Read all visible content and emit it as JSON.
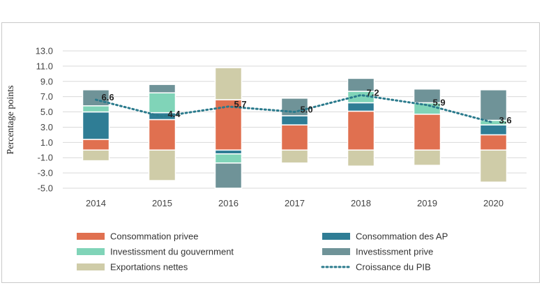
{
  "chart_data": {
    "type": "bar",
    "stacked": true,
    "ylabel": "Percentage points",
    "ylim": [
      -5.0,
      13.0
    ],
    "yticks": [
      "13.0",
      "11.0",
      "9.0",
      "7.0",
      "5.0",
      "3.0",
      "1.0",
      "-1.0",
      "-3.0",
      "-5.0"
    ],
    "categories": [
      "2014",
      "2015",
      "2016",
      "2017",
      "2018",
      "2019",
      "2020"
    ],
    "grid": true,
    "legend_position": "bottom",
    "series": [
      {
        "name": "Consommation privee",
        "color": "#e07050",
        "values": [
          1.4,
          4.0,
          6.6,
          3.3,
          5.1,
          4.7,
          2.0
        ]
      },
      {
        "name": "Consommation des AP",
        "color": "#2f7d95",
        "values": [
          3.6,
          0.9,
          -0.5,
          1.2,
          1.1,
          0.0,
          1.3
        ]
      },
      {
        "name": "Investissment du gouvernment",
        "color": "#80d4b8",
        "values": [
          0.8,
          2.6,
          -1.2,
          0.0,
          1.5,
          1.5,
          0.6
        ]
      },
      {
        "name": "Investissment prive",
        "color": "#6f9398",
        "values": [
          2.1,
          1.1,
          -3.3,
          2.3,
          1.7,
          1.8,
          4.0
        ]
      },
      {
        "name": "Exportations nettes",
        "color": "#cfcca8",
        "values": [
          -1.4,
          -4.0,
          4.2,
          -1.7,
          -2.1,
          -2.0,
          -4.2
        ]
      }
    ],
    "line": {
      "name": "Croissance du PIB",
      "color": "#2a7a8c",
      "values": [
        6.6,
        4.4,
        5.7,
        5.0,
        7.2,
        5.9,
        3.6
      ],
      "labels": [
        "6.6",
        "4.4",
        "5.7",
        "5.0",
        "7.2",
        "5.9",
        "3.6"
      ]
    }
  }
}
